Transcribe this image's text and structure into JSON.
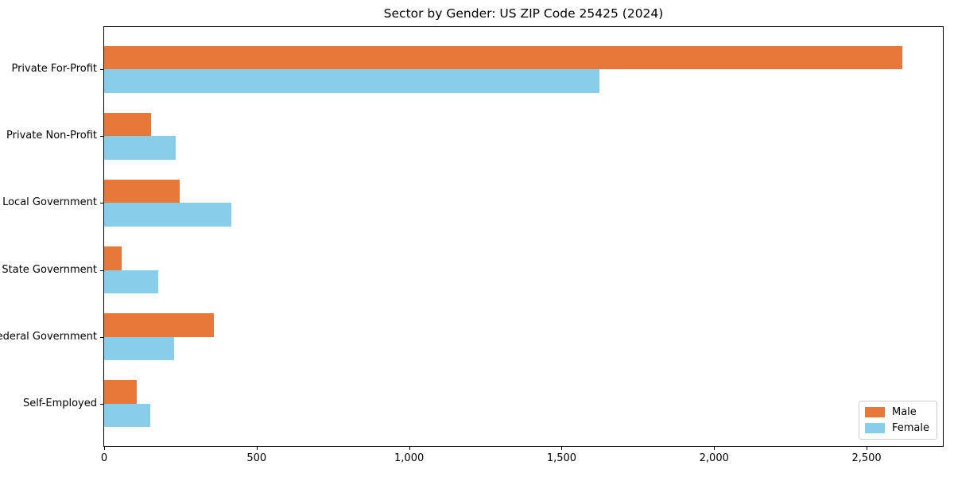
{
  "title": "Sector by Gender: US ZIP Code 25425 (2024)",
  "chart_data": {
    "type": "bar",
    "orientation": "horizontal",
    "title": "Sector by Gender: US ZIP Code 25425 (2024)",
    "xlabel": "",
    "ylabel": "",
    "categories": [
      "Private For-Profit",
      "Private Non-Profit",
      "Local Government",
      "State Government",
      "Federal Government",
      "Self-Employed"
    ],
    "series": [
      {
        "name": "Male",
        "color": "#e8783a",
        "values": [
          2617,
          154,
          247,
          57,
          361,
          107
        ]
      },
      {
        "name": "Female",
        "color": "#87ceeb",
        "values": [
          1625,
          235,
          416,
          176,
          230,
          151
        ]
      }
    ],
    "xlim": [
      0,
      2750
    ],
    "xticks": [
      {
        "value": 0,
        "label": "0"
      },
      {
        "value": 500,
        "label": "500"
      },
      {
        "value": 1000,
        "label": "1,000"
      },
      {
        "value": 1500,
        "label": "1,500"
      },
      {
        "value": 2000,
        "label": "2,000"
      },
      {
        "value": 2500,
        "label": "2,500"
      }
    ],
    "grid": false,
    "legend": {
      "position": "lower right"
    },
    "bar_height_frac": 0.35
  },
  "colors": {
    "spine": "#000000",
    "legend_border": "#cccccc",
    "background": "#ffffff",
    "text": "#000000"
  }
}
